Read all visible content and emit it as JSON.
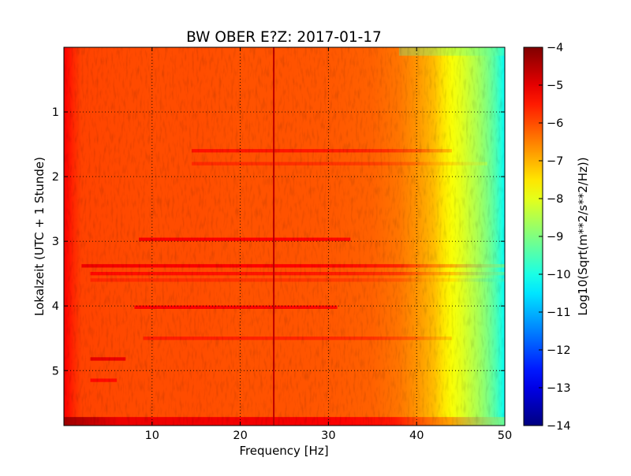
{
  "chart_data": {
    "type": "heatmap",
    "title": "BW OBER E?Z: 2017-01-17",
    "xlabel": "Frequency [Hz]",
    "ylabel": "Lokalzeit (UTC + 1 Stunde)",
    "xlim": [
      0,
      50
    ],
    "ylim": [
      5.85,
      0.0
    ],
    "y_inverted": true,
    "x_ticks": [
      10,
      20,
      30,
      40,
      50
    ],
    "x_tick_labels": [
      "10",
      "20",
      "30",
      "40",
      "50"
    ],
    "y_ticks": [
      1,
      2,
      3,
      4,
      5
    ],
    "y_tick_labels": [
      "1",
      "2",
      "3",
      "4",
      "5"
    ],
    "grid": true,
    "grid_style": "dotted",
    "colormap": "jet",
    "colorbar": {
      "label": "Log10(Sqrt(m**2/s**2/Hz))",
      "range": [
        -14,
        -4
      ],
      "ticks": [
        -4,
        -5,
        -6,
        -7,
        -8,
        -9,
        -10,
        -11,
        -12,
        -13,
        -14
      ],
      "tick_labels": [
        "−4",
        "−5",
        "−6",
        "−7",
        "−8",
        "−9",
        "−10",
        "−11",
        "−12",
        "−13",
        "−14"
      ]
    },
    "frequency_profile": {
      "frequency_hz": [
        0,
        0.5,
        1,
        2,
        5,
        10,
        15,
        20,
        25,
        30,
        35,
        38,
        40,
        42,
        43,
        44,
        45,
        46,
        47,
        48,
        49,
        50
      ],
      "log10_amplitude": [
        -5.2,
        -5.4,
        -5.6,
        -5.9,
        -5.95,
        -6.0,
        -6.0,
        -6.05,
        -6.05,
        -6.1,
        -6.2,
        -6.4,
        -6.7,
        -7.1,
        -7.5,
        -7.8,
        -8.0,
        -8.3,
        -8.6,
        -9.0,
        -9.5,
        -10.2
      ]
    },
    "features": {
      "vertical_line_hz": 23.8,
      "vertical_line_log10_amplitude": -4.6,
      "horizontal_bands": [
        {
          "time": 1.6,
          "f_start": 14.5,
          "f_end": 44,
          "delta": 0.6
        },
        {
          "time": 1.8,
          "f_start": 14.5,
          "f_end": 48,
          "delta": 0.35
        },
        {
          "time": 2.97,
          "f_start": 8.5,
          "f_end": 32.5,
          "delta": 0.8
        },
        {
          "time": 3.38,
          "f_start": 2,
          "f_end": 50,
          "delta": 0.8
        },
        {
          "time": 3.5,
          "f_start": 3,
          "f_end": 50,
          "delta": 0.6
        },
        {
          "time": 3.6,
          "f_start": 3,
          "f_end": 50,
          "delta": 0.3
        },
        {
          "time": 4.02,
          "f_start": 8,
          "f_end": 31,
          "delta": 0.75
        },
        {
          "time": 4.5,
          "f_start": 9,
          "f_end": 44,
          "delta": 0.45
        },
        {
          "time": 4.82,
          "f_start": 3,
          "f_end": 7,
          "delta": 0.9
        },
        {
          "time": 5.15,
          "f_start": 3,
          "f_end": 6,
          "delta": 0.6
        },
        {
          "time": 5.8,
          "f_start": 0,
          "f_end": 50,
          "delta": 0.9
        }
      ],
      "top_gap": {
        "time_start": 0.0,
        "time_end": 0.13,
        "log10_amplitude_high_freq": -9.2
      }
    }
  }
}
